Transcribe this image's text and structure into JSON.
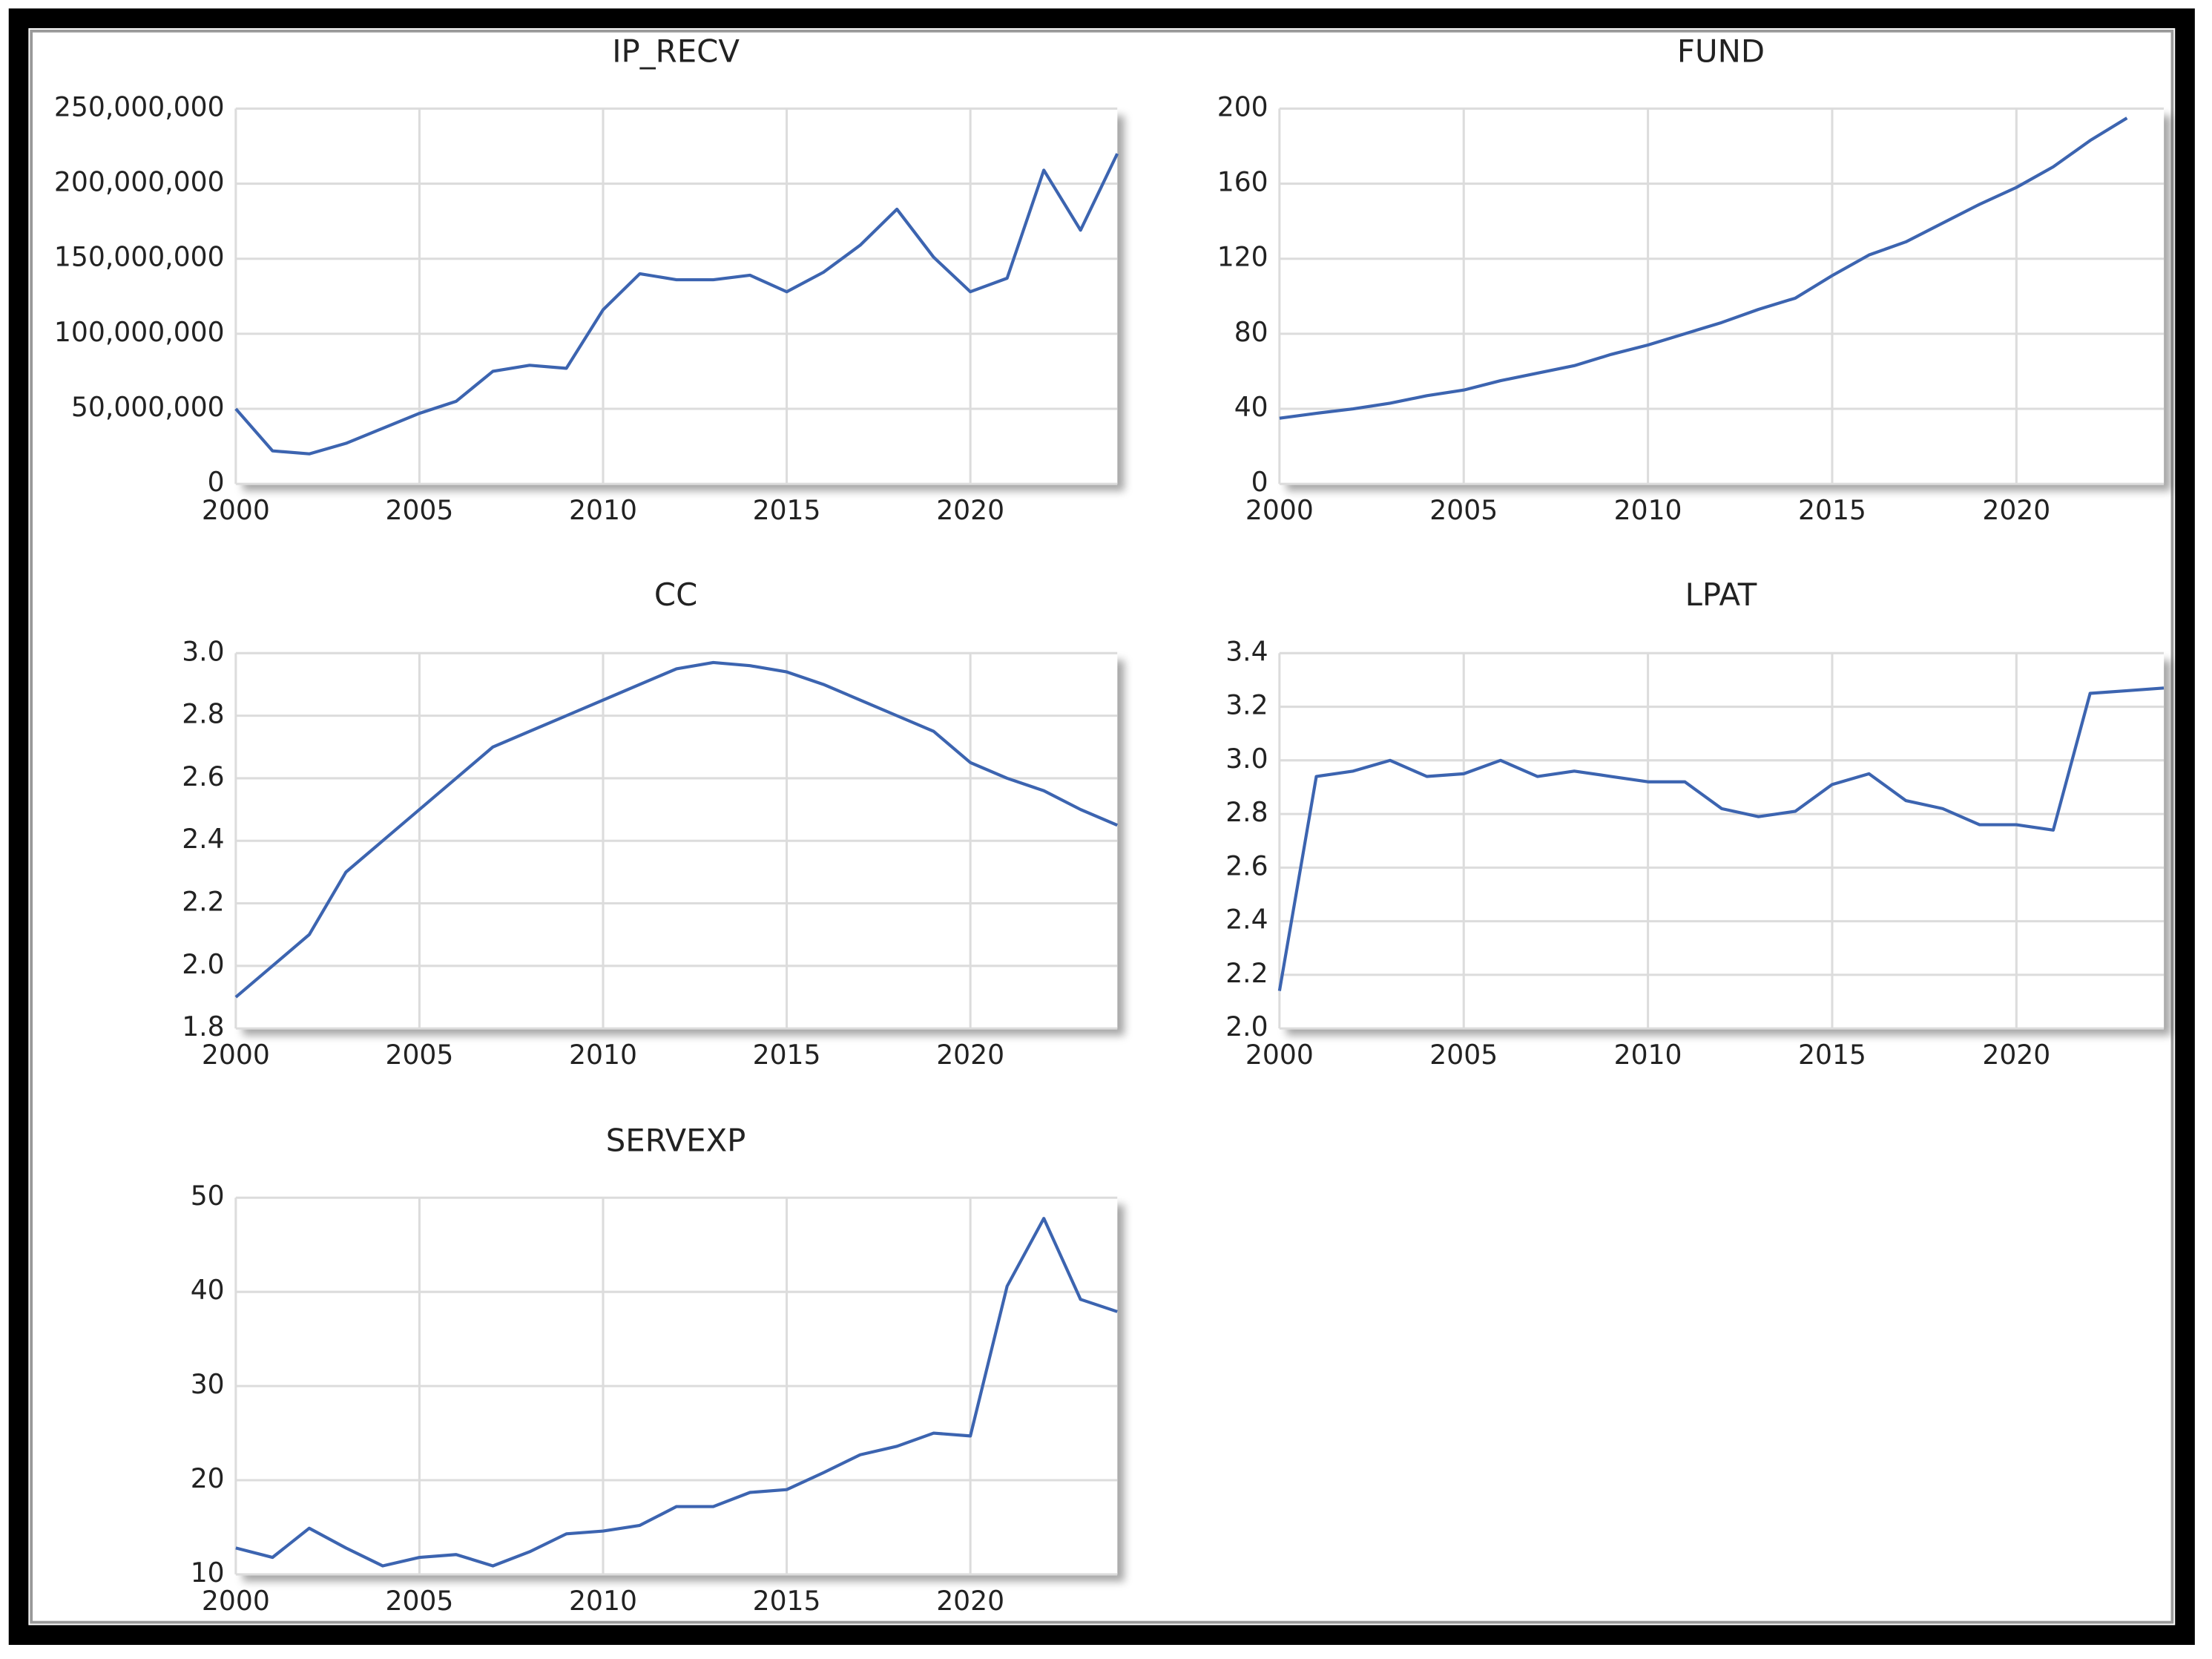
{
  "chart_data": [
    {
      "type": "line",
      "title": "IP_RECV",
      "color": "#3c64b0",
      "x": [
        2000,
        2001,
        2002,
        2003,
        2004,
        2005,
        2006,
        2007,
        2008,
        2009,
        2010,
        2011,
        2012,
        2013,
        2014,
        2015,
        2016,
        2017,
        2018,
        2019,
        2020,
        2021,
        2022,
        2023,
        2024
      ],
      "values": [
        50000000,
        22000000,
        20000000,
        27000000,
        37000000,
        47000000,
        55000000,
        75000000,
        79000000,
        77000000,
        116000000,
        140000000,
        136000000,
        136000000,
        139000000,
        128000000,
        141000000,
        159000000,
        183000000,
        151000000,
        128000000,
        137000000,
        209000000,
        169000000,
        220000000
      ],
      "xlim": [
        2000,
        2024
      ],
      "xticks": [
        2000,
        2005,
        2010,
        2015,
        2020
      ],
      "ylim": [
        0,
        250000000
      ],
      "yticks": [
        0,
        {
          "value": 50000000,
          "label": "50,000,000"
        },
        {
          "value": 100000000,
          "label": "100,000,000"
        },
        {
          "value": 150000000,
          "label": "150,000,000"
        },
        {
          "value": 200000000,
          "label": "200,000,000"
        },
        {
          "value": 250000000,
          "label": "250,000,000"
        }
      ],
      "grid": true
    },
    {
      "type": "line",
      "title": "FUND",
      "color": "#3c64b0",
      "x": [
        2000,
        2001,
        2002,
        2003,
        2004,
        2005,
        2006,
        2007,
        2008,
        2009,
        2010,
        2011,
        2012,
        2013,
        2014,
        2015,
        2016,
        2017,
        2018,
        2019,
        2020,
        2021,
        2022,
        2023
      ],
      "values": [
        35,
        37.6,
        40,
        43,
        47,
        50,
        55,
        59,
        63,
        69,
        74,
        80,
        86,
        93,
        99,
        111,
        122,
        129,
        139,
        149,
        158,
        169,
        183,
        195
      ],
      "xlim": [
        2000,
        2024
      ],
      "xticks": [
        2000,
        2005,
        2010,
        2015,
        2020
      ],
      "ylim": [
        0,
        200
      ],
      "yticks": [
        0,
        40,
        80,
        120,
        160,
        200
      ],
      "grid": true
    },
    {
      "type": "line",
      "title": "CC",
      "color": "#3c64b0",
      "x": [
        2000,
        2001,
        2002,
        2003,
        2004,
        2005,
        2006,
        2007,
        2008,
        2009,
        2010,
        2011,
        2012,
        2013,
        2014,
        2015,
        2016,
        2017,
        2018,
        2019,
        2020,
        2021,
        2022,
        2023,
        2024
      ],
      "values": [
        1.9,
        2.0,
        2.1,
        2.3,
        2.4,
        2.5,
        2.6,
        2.7,
        2.75,
        2.8,
        2.85,
        2.9,
        2.95,
        2.97,
        2.96,
        2.94,
        2.9,
        2.85,
        2.8,
        2.75,
        2.65,
        2.6,
        2.56,
        2.5,
        2.45
      ],
      "xlim": [
        2000,
        2024
      ],
      "xticks": [
        2000,
        2005,
        2010,
        2015,
        2020
      ],
      "ylim": [
        1.8,
        3.0
      ],
      "yticks": [
        1.8,
        {
          "value": 2,
          "label": "2.0"
        },
        2.2,
        2.4,
        2.6,
        2.8,
        {
          "value": 3,
          "label": "3.0"
        }
      ],
      "grid": true
    },
    {
      "type": "line",
      "title": "LPAT",
      "color": "#3c64b0",
      "x": [
        2000,
        2001,
        2002,
        2003,
        2004,
        2005,
        2006,
        2007,
        2008,
        2009,
        2010,
        2011,
        2012,
        2013,
        2014,
        2015,
        2016,
        2017,
        2018,
        2019,
        2020,
        2021,
        2022,
        2023,
        2024
      ],
      "values": [
        2.14,
        2.94,
        2.96,
        3.0,
        2.94,
        2.95,
        3.0,
        2.94,
        2.96,
        2.94,
        2.92,
        2.92,
        2.82,
        2.79,
        2.81,
        2.91,
        2.95,
        2.85,
        2.82,
        2.76,
        2.76,
        2.74,
        3.25,
        3.26,
        3.27
      ],
      "xlim": [
        2000,
        2024
      ],
      "xticks": [
        2000,
        2005,
        2010,
        2015,
        2020
      ],
      "ylim": [
        2.0,
        3.4
      ],
      "yticks": [
        {
          "value": 2,
          "label": "2.0"
        },
        2.2,
        2.4,
        2.6,
        2.8,
        {
          "value": 3,
          "label": "3.0"
        },
        3.2,
        3.4
      ],
      "grid": true
    },
    {
      "type": "line",
      "title": "SERVEXP",
      "color": "#3c64b0",
      "x": [
        2000,
        2001,
        2002,
        2003,
        2004,
        2005,
        2006,
        2007,
        2008,
        2009,
        2010,
        2011,
        2012,
        2013,
        2014,
        2015,
        2016,
        2017,
        2018,
        2019,
        2020,
        2021,
        2022,
        2023,
        2024
      ],
      "values": [
        12.8,
        11.8,
        14.9,
        12.8,
        10.9,
        11.8,
        12.1,
        10.9,
        12.4,
        14.3,
        14.6,
        15.2,
        17.2,
        17.2,
        18.7,
        19.0,
        20.8,
        22.7,
        23.6,
        25.0,
        24.7,
        40.6,
        47.8,
        39.2,
        37.9
      ],
      "xlim": [
        2000,
        2024
      ],
      "xticks": [
        2000,
        2005,
        2010,
        2015,
        2020
      ],
      "ylim": [
        10,
        50
      ],
      "yticks": [
        10,
        20,
        30,
        40,
        50
      ],
      "grid": true
    }
  ]
}
